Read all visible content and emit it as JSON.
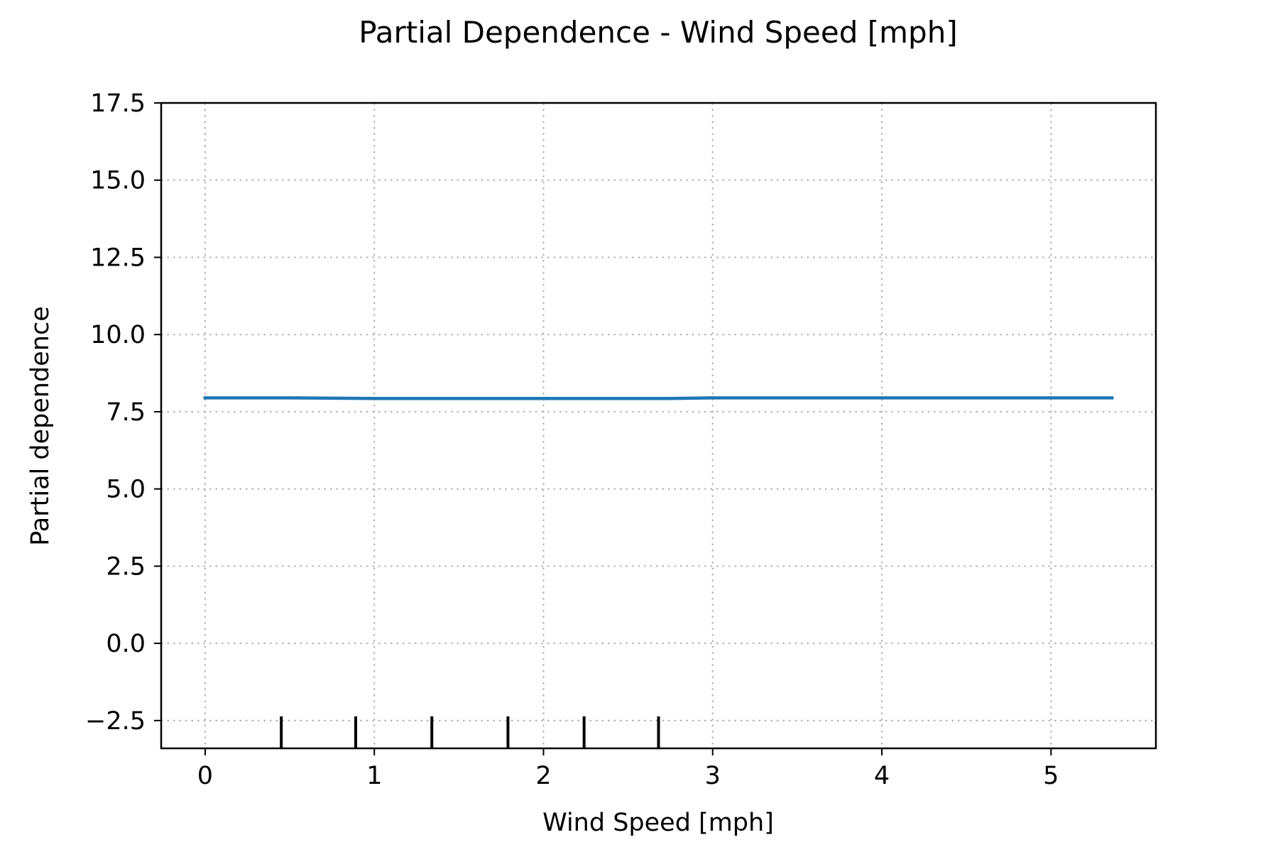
{
  "chart_data": {
    "type": "line",
    "title": "Partial Dependence - Wind Speed [mph]",
    "xlabel": "Wind Speed [mph]",
    "ylabel": "Partial dependence",
    "xlim": [
      -0.26,
      5.62
    ],
    "ylim": [
      -3.4,
      17.5
    ],
    "xticks": [
      0,
      1,
      2,
      3,
      4,
      5
    ],
    "xtick_labels": [
      "0",
      "1",
      "2",
      "3",
      "4",
      "5"
    ],
    "yticks": [
      -2.5,
      0.0,
      2.5,
      5.0,
      7.5,
      10.0,
      12.5,
      15.0,
      17.5
    ],
    "ytick_labels": [
      "−2.5",
      "0.0",
      "2.5",
      "5.0",
      "7.5",
      "10.0",
      "12.5",
      "15.0",
      "17.5"
    ],
    "grid": true,
    "legend": "none",
    "series": [
      {
        "color": "#1f77b4",
        "x": [
          0,
          0.5,
          1.0,
          1.5,
          2.0,
          2.5,
          2.75,
          3.0,
          3.5,
          4.0,
          4.5,
          5.0,
          5.36
        ],
        "y": [
          7.95,
          7.95,
          7.93,
          7.93,
          7.93,
          7.93,
          7.93,
          7.95,
          7.95,
          7.95,
          7.95,
          7.95,
          7.95
        ]
      }
    ],
    "rug_deciles": [
      0.45,
      0.89,
      1.34,
      1.79,
      2.24,
      2.68
    ],
    "rug_color": "#000000"
  }
}
